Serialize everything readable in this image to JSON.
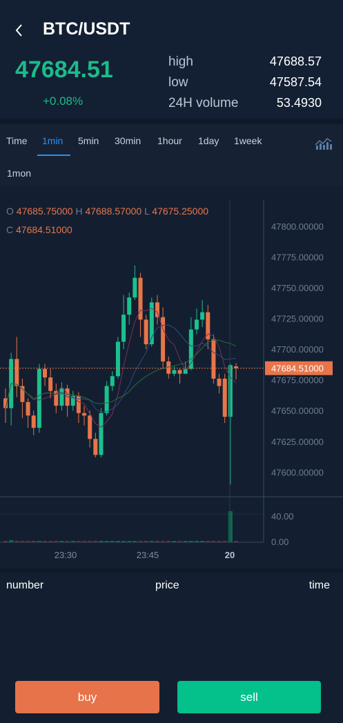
{
  "header": {
    "pair": "BTC/USDT",
    "last_price": "47684.51",
    "change": "+0.08%",
    "stats": [
      {
        "label": "high",
        "value": "47688.57"
      },
      {
        "label": "low",
        "value": "47587.54"
      },
      {
        "label": "24H volume",
        "value": "53.4930"
      }
    ]
  },
  "tabs": {
    "items": [
      "Time",
      "1min",
      "5min",
      "30min",
      "1hour",
      "1day",
      "1week"
    ],
    "second_row": "1mon",
    "active": "1min"
  },
  "ohlc": {
    "o_label": "O",
    "o_value": "47685.75000",
    "h_label": "H",
    "h_value": "47688.57000",
    "l_label": "L",
    "l_value": "47675.25000",
    "c_label": "C",
    "c_value": "47684.51000"
  },
  "chart_data": {
    "type": "candlestick",
    "y_ticks": [
      "47800.00000",
      "47775.00000",
      "47750.00000",
      "47725.00000",
      "47700.00000",
      "47675.00000",
      "47650.00000",
      "47625.00000",
      "47600.00000"
    ],
    "ylim": [
      47580,
      47810
    ],
    "current_price_label": "47684.51000",
    "current_price": 47684.51,
    "x_ticks": [
      "23:30",
      "23:45",
      "20"
    ],
    "volume_ticks": [
      "40.00",
      "0.00"
    ],
    "up_color": "#1cc08f",
    "down_color": "#e8754a",
    "candles": [
      {
        "o": 47660,
        "c": 47652,
        "h": 47668,
        "l": 47640,
        "v": 2
      },
      {
        "o": 47652,
        "c": 47692,
        "h": 47697,
        "l": 47638,
        "v": 3
      },
      {
        "o": 47692,
        "c": 47670,
        "h": 47710,
        "l": 47661,
        "v": 1
      },
      {
        "o": 47670,
        "c": 47657,
        "h": 47676,
        "l": 47644,
        "v": 2
      },
      {
        "o": 47657,
        "c": 47646,
        "h": 47660,
        "l": 47636,
        "v": 1
      },
      {
        "o": 47646,
        "c": 47636,
        "h": 47650,
        "l": 47630,
        "v": 2
      },
      {
        "o": 47636,
        "c": 47684,
        "h": 47688,
        "l": 47632,
        "v": 1
      },
      {
        "o": 47684,
        "c": 47677,
        "h": 47688,
        "l": 47670,
        "v": 1
      },
      {
        "o": 47677,
        "c": 47666,
        "h": 47684,
        "l": 47660,
        "v": 1
      },
      {
        "o": 47666,
        "c": 47654,
        "h": 47672,
        "l": 47648,
        "v": 2
      },
      {
        "o": 47654,
        "c": 47668,
        "h": 47673,
        "l": 47650,
        "v": 1
      },
      {
        "o": 47668,
        "c": 47654,
        "h": 47671,
        "l": 47645,
        "v": 1
      },
      {
        "o": 47654,
        "c": 47662,
        "h": 47666,
        "l": 47650,
        "v": 1
      },
      {
        "o": 47662,
        "c": 47648,
        "h": 47665,
        "l": 47640,
        "v": 1
      },
      {
        "o": 47648,
        "c": 47646,
        "h": 47654,
        "l": 47638,
        "v": 1
      },
      {
        "o": 47646,
        "c": 47627,
        "h": 47650,
        "l": 47620,
        "v": 2
      },
      {
        "o": 47627,
        "c": 47614,
        "h": 47632,
        "l": 47612,
        "v": 2
      },
      {
        "o": 47614,
        "c": 47648,
        "h": 47652,
        "l": 47612,
        "v": 1
      },
      {
        "o": 47648,
        "c": 47670,
        "h": 47674,
        "l": 47646,
        "v": 1
      },
      {
        "o": 47670,
        "c": 47678,
        "h": 47682,
        "l": 47666,
        "v": 2
      },
      {
        "o": 47678,
        "c": 47706,
        "h": 47710,
        "l": 47676,
        "v": 1
      },
      {
        "o": 47706,
        "c": 47728,
        "h": 47744,
        "l": 47700,
        "v": 1
      },
      {
        "o": 47728,
        "c": 47742,
        "h": 47746,
        "l": 47720,
        "v": 1
      },
      {
        "o": 47742,
        "c": 47758,
        "h": 47768,
        "l": 47740,
        "v": 2
      },
      {
        "o": 47758,
        "c": 47724,
        "h": 47762,
        "l": 47710,
        "v": 1
      },
      {
        "o": 47724,
        "c": 47704,
        "h": 47728,
        "l": 47700,
        "v": 1
      },
      {
        "o": 47704,
        "c": 47738,
        "h": 47742,
        "l": 47702,
        "v": 1
      },
      {
        "o": 47738,
        "c": 47726,
        "h": 47744,
        "l": 47720,
        "v": 1
      },
      {
        "o": 47726,
        "c": 47690,
        "h": 47734,
        "l": 47684,
        "v": 1
      },
      {
        "o": 47690,
        "c": 47680,
        "h": 47694,
        "l": 47676,
        "v": 1
      },
      {
        "o": 47680,
        "c": 47683,
        "h": 47686,
        "l": 47678,
        "v": 1
      },
      {
        "o": 47683,
        "c": 47680,
        "h": 47684,
        "l": 47672,
        "v": 1
      },
      {
        "o": 47680,
        "c": 47684,
        "h": 47690,
        "l": 47680,
        "v": 1
      },
      {
        "o": 47684,
        "c": 47716,
        "h": 47726,
        "l": 47683,
        "v": 1
      },
      {
        "o": 47716,
        "c": 47724,
        "h": 47733,
        "l": 47712,
        "v": 1
      },
      {
        "o": 47724,
        "c": 47730,
        "h": 47740,
        "l": 47718,
        "v": 1
      },
      {
        "o": 47730,
        "c": 47708,
        "h": 47736,
        "l": 47700,
        "v": 1
      },
      {
        "o": 47708,
        "c": 47676,
        "h": 47712,
        "l": 47672,
        "v": 2
      },
      {
        "o": 47676,
        "c": 47670,
        "h": 47680,
        "l": 47664,
        "v": 1
      },
      {
        "o": 47676,
        "c": 47645,
        "h": 47680,
        "l": 47640,
        "v": 2
      },
      {
        "o": 47645,
        "c": 47687,
        "h": 47688,
        "l": 47590,
        "v": 45
      },
      {
        "o": 47686,
        "c": 47684.5,
        "h": 47688.6,
        "l": 47675.3,
        "v": 1
      }
    ]
  },
  "trades": {
    "col_number": "number",
    "col_price": "price",
    "col_time": "time"
  },
  "actions": {
    "buy": "buy",
    "sell": "sell"
  }
}
